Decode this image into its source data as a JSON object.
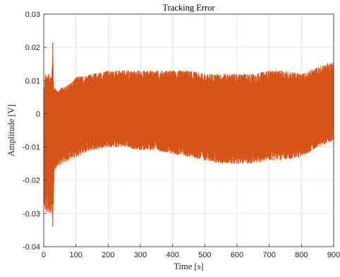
{
  "chart_data": {
    "type": "line",
    "title": "Tracking Error",
    "xlabel": "Time [s]",
    "ylabel": "Amplitude [V]",
    "xlim": [
      0,
      900
    ],
    "ylim": [
      -0.04,
      0.03
    ],
    "grid": true,
    "x_ticks": [
      "0",
      "100",
      "200",
      "300",
      "400",
      "500",
      "600",
      "700",
      "800",
      "900"
    ],
    "y_ticks": [
      "0.03",
      "0.02",
      "0.01",
      "0",
      "-0.01",
      "-0.02",
      "-0.03",
      "-0.04"
    ],
    "series": [
      {
        "color": "#D95319",
        "style": "dense oscillating signal",
        "envelope": {
          "x": [
            0,
            5,
            15,
            25,
            28,
            30,
            32,
            35,
            40,
            60,
            80,
            100,
            150,
            200,
            250,
            300,
            350,
            400,
            450,
            500,
            550,
            600,
            650,
            700,
            750,
            800,
            850,
            900
          ],
          "upper": [
            0.006,
            0.012,
            0.012,
            0.012,
            0.021,
            0.013,
            0.008,
            0.008,
            0.007,
            0.008,
            0.009,
            0.011,
            0.012,
            0.013,
            0.013,
            0.013,
            0.013,
            0.013,
            0.013,
            0.012,
            0.012,
            0.012,
            0.012,
            0.013,
            0.013,
            0.012,
            0.014,
            0.016
          ],
          "lower": [
            -0.027,
            -0.03,
            -0.03,
            -0.03,
            -0.034,
            -0.028,
            -0.02,
            -0.017,
            -0.016,
            -0.015,
            -0.014,
            -0.013,
            -0.011,
            -0.01,
            -0.01,
            -0.011,
            -0.011,
            -0.012,
            -0.013,
            -0.014,
            -0.015,
            -0.015,
            -0.015,
            -0.014,
            -0.014,
            -0.013,
            -0.01,
            -0.008
          ]
        }
      }
    ]
  }
}
